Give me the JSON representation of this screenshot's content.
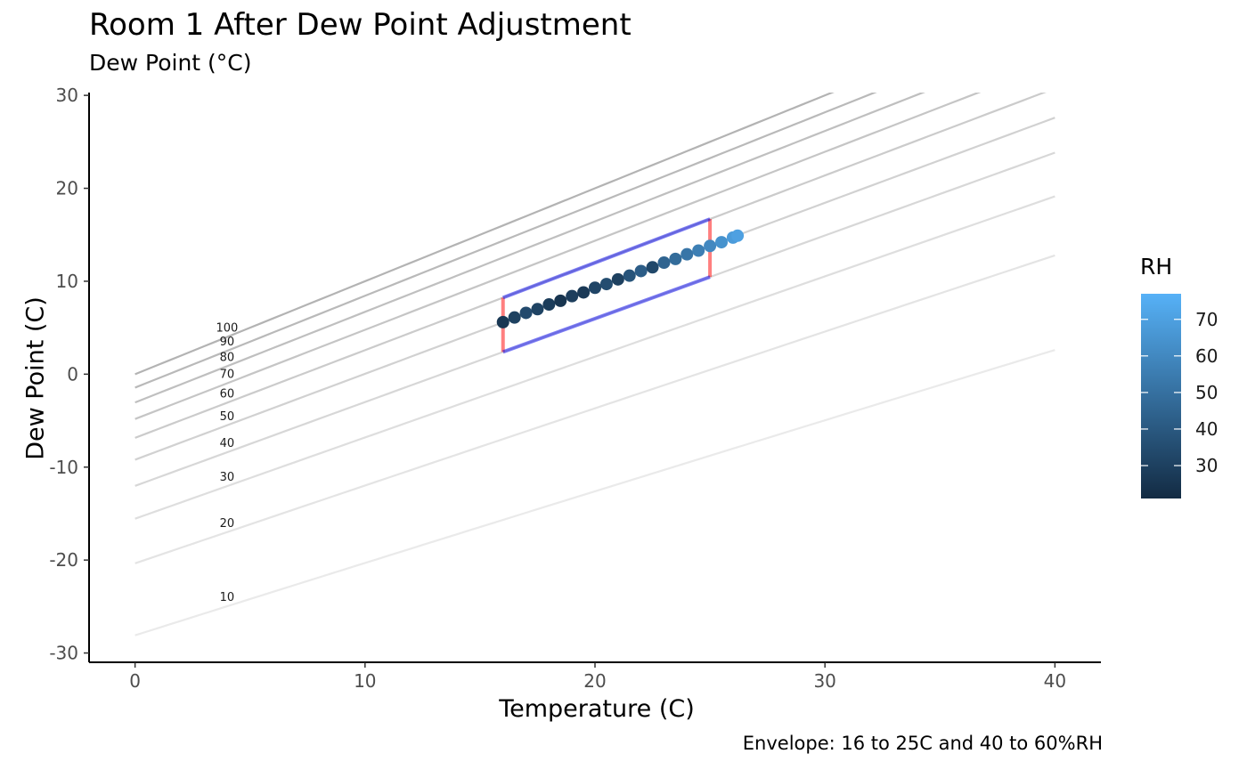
{
  "title": "Room 1 After Dew Point Adjustment",
  "subtitle": "Dew Point (°C)",
  "caption": "Envelope: 16 to 25C and 40 to 60%RH",
  "chart_data": {
    "type": "scatter",
    "xlabel": "Temperature (C)",
    "ylabel": "Dew Point (C)",
    "xlim": [
      -2,
      42
    ],
    "ylim": [
      -31,
      30.3
    ],
    "x_ticks": [
      0,
      10,
      20,
      30,
      40
    ],
    "y_ticks": [
      -30,
      -20,
      -10,
      0,
      10,
      20,
      30
    ],
    "grid": false,
    "rh_curves": {
      "levels": [
        10,
        20,
        30,
        40,
        50,
        60,
        70,
        80,
        90,
        100
      ],
      "labels": [
        "10",
        "20",
        "30",
        "40",
        "50",
        "60",
        "70",
        "80",
        "90",
        "100"
      ],
      "label_x": 4,
      "x_range": [
        0,
        40
      ],
      "color": "#b3b3b3"
    },
    "envelope": {
      "temp_range": [
        16,
        25
      ],
      "rh_range": [
        40,
        60
      ],
      "rh_line_color": "#0000ee",
      "temp_line_color": "#ff0000"
    },
    "series": [
      {
        "x": [
          16.0,
          16.5,
          17.0,
          17.5,
          18.0,
          18.5,
          19.0,
          19.5,
          20.0,
          20.5,
          21.0,
          21.5,
          22.0,
          22.5,
          23.0,
          23.5,
          24.0,
          24.5,
          25.0,
          25.5,
          26.0,
          26.2
        ],
        "y": [
          5.6,
          6.1,
          6.6,
          7.0,
          7.5,
          7.9,
          8.4,
          8.8,
          9.3,
          9.7,
          10.2,
          10.6,
          11.1,
          11.5,
          12.0,
          12.4,
          12.9,
          13.3,
          13.8,
          14.2,
          14.7,
          14.9
        ],
        "rh": [
          26,
          30,
          34,
          31,
          28,
          25,
          29,
          27,
          32,
          35,
          30,
          38,
          42,
          33,
          45,
          48,
          52,
          56,
          60,
          64,
          68,
          70
        ]
      }
    ],
    "legend": {
      "title": "RH",
      "position": "right",
      "range": [
        21,
        77
      ],
      "ticks": [
        30,
        40,
        50,
        60,
        70
      ],
      "low_color": "#132b43",
      "high_color": "#56b1f7"
    }
  }
}
